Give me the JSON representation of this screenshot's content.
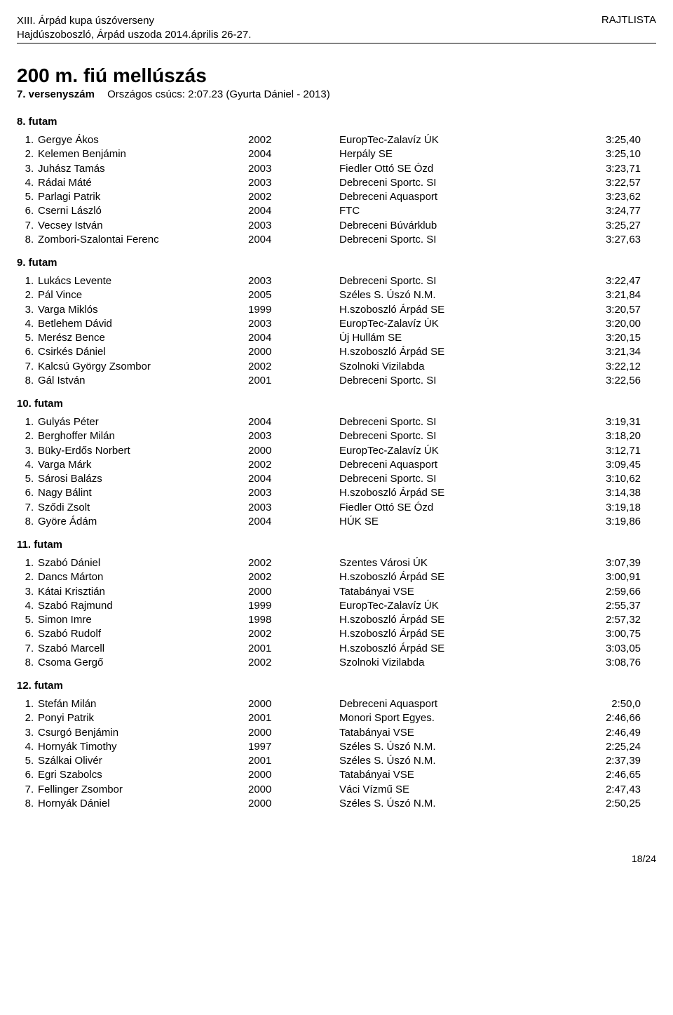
{
  "header": {
    "line1": "XIII. Árpád kupa úszóverseny",
    "line2": "Hajdúszoboszló, Árpád uszoda 2014.április 26-27.",
    "right": "RAJTLISTA"
  },
  "title": "200 m. fiú mellúszás",
  "event_num": "7. versenyszám",
  "record": "Országos csúcs:  2:07.23 (Gyurta Dániel - 2013)",
  "heats": [
    {
      "label": "8. futam",
      "rows": [
        {
          "n": "1",
          "name": "Gergye Ákos",
          "year": "2002",
          "club": "EuropTec-Zalavíz ÚK",
          "time": "3:25,40"
        },
        {
          "n": "2",
          "name": "Kelemen Benjámin",
          "year": "2004",
          "club": "Herpály SE",
          "time": "3:25,10"
        },
        {
          "n": "3",
          "name": "Juhász Tamás",
          "year": "2003",
          "club": "Fiedler Ottó SE Ózd",
          "time": "3:23,71"
        },
        {
          "n": "4",
          "name": "Rádai Máté",
          "year": "2003",
          "club": "Debreceni Sportc. SI",
          "time": "3:22,57"
        },
        {
          "n": "5",
          "name": "Parlagi Patrik",
          "year": "2002",
          "club": "Debreceni Aquasport",
          "time": "3:23,62"
        },
        {
          "n": "6",
          "name": "Cserni László",
          "year": "2004",
          "club": "FTC",
          "time": "3:24,77"
        },
        {
          "n": "7",
          "name": "Vecsey István",
          "year": "2003",
          "club": "Debreceni Búvárklub",
          "time": "3:25,27"
        },
        {
          "n": "8",
          "name": "Zombori-Szalontai Ferenc",
          "year": "2004",
          "club": "Debreceni Sportc. SI",
          "time": "3:27,63"
        }
      ]
    },
    {
      "label": "9. futam",
      "rows": [
        {
          "n": "1",
          "name": "Lukács Levente",
          "year": "2003",
          "club": "Debreceni Sportc. SI",
          "time": "3:22,47"
        },
        {
          "n": "2",
          "name": "Pál Vince",
          "year": "2005",
          "club": "Széles S. Úszó N.M.",
          "time": "3:21,84"
        },
        {
          "n": "3",
          "name": "Varga Miklós",
          "year": "1999",
          "club": "H.szoboszló Árpád SE",
          "time": "3:20,57"
        },
        {
          "n": "4",
          "name": "Betlehem Dávid",
          "year": "2003",
          "club": "EuropTec-Zalavíz ÚK",
          "time": "3:20,00"
        },
        {
          "n": "5",
          "name": "Merész Bence",
          "year": "2004",
          "club": "Új Hullám SE",
          "time": "3:20,15"
        },
        {
          "n": "6",
          "name": "Csirkés Dániel",
          "year": "2000",
          "club": "H.szoboszló Árpád SE",
          "time": "3:21,34"
        },
        {
          "n": "7",
          "name": "Kalcsú György Zsombor",
          "year": "2002",
          "club": "Szolnoki Vizilabda",
          "time": "3:22,12"
        },
        {
          "n": "8",
          "name": "Gál István",
          "year": "2001",
          "club": "Debreceni Sportc. SI",
          "time": "3:22,56"
        }
      ]
    },
    {
      "label": "10. futam",
      "rows": [
        {
          "n": "1",
          "name": "Gulyás Péter",
          "year": "2004",
          "club": "Debreceni Sportc. SI",
          "time": "3:19,31"
        },
        {
          "n": "2",
          "name": "Berghoffer Milán",
          "year": "2003",
          "club": "Debreceni Sportc. SI",
          "time": "3:18,20"
        },
        {
          "n": "3",
          "name": "Büky-Erdős Norbert",
          "year": "2000",
          "club": "EuropTec-Zalavíz ÚK",
          "time": "3:12,71"
        },
        {
          "n": "4",
          "name": "Varga Márk",
          "year": "2002",
          "club": "Debreceni Aquasport",
          "time": "3:09,45"
        },
        {
          "n": "5",
          "name": "Sárosi Balázs",
          "year": "2004",
          "club": "Debreceni Sportc. SI",
          "time": "3:10,62"
        },
        {
          "n": "6",
          "name": "Nagy Bálint",
          "year": "2003",
          "club": "H.szoboszló Árpád SE",
          "time": "3:14,38"
        },
        {
          "n": "7",
          "name": "Sződi Zsolt",
          "year": "2003",
          "club": "Fiedler Ottó SE Ózd",
          "time": "3:19,18"
        },
        {
          "n": "8",
          "name": "Györe Ádám",
          "year": "2004",
          "club": "HÚK SE",
          "time": "3:19,86"
        }
      ]
    },
    {
      "label": "11. futam",
      "rows": [
        {
          "n": "1",
          "name": "Szabó Dániel",
          "year": "2002",
          "club": "Szentes Városi ÚK",
          "time": "3:07,39"
        },
        {
          "n": "2",
          "name": "Dancs Márton",
          "year": "2002",
          "club": "H.szoboszló Árpád SE",
          "time": "3:00,91"
        },
        {
          "n": "3",
          "name": "Kátai Krisztián",
          "year": "2000",
          "club": "Tatabányai VSE",
          "time": "2:59,66"
        },
        {
          "n": "4",
          "name": "Szabó Rajmund",
          "year": "1999",
          "club": "EuropTec-Zalavíz ÚK",
          "time": "2:55,37"
        },
        {
          "n": "5",
          "name": "Simon Imre",
          "year": "1998",
          "club": "H.szoboszló Árpád SE",
          "time": "2:57,32"
        },
        {
          "n": "6",
          "name": "Szabó Rudolf",
          "year": "2002",
          "club": "H.szoboszló Árpád SE",
          "time": "3:00,75"
        },
        {
          "n": "7",
          "name": "Szabó Marcell",
          "year": "2001",
          "club": "H.szoboszló Árpád SE",
          "time": "3:03,05"
        },
        {
          "n": "8",
          "name": "Csoma Gergő",
          "year": "2002",
          "club": "Szolnoki Vizilabda",
          "time": "3:08,76"
        }
      ]
    },
    {
      "label": "12. futam",
      "rows": [
        {
          "n": "1",
          "name": "Stefán Milán",
          "year": "2000",
          "club": "Debreceni Aquasport",
          "time": "2:50,0"
        },
        {
          "n": "2",
          "name": "Ponyi Patrik",
          "year": "2001",
          "club": "Monori Sport Egyes.",
          "time": "2:46,66"
        },
        {
          "n": "3",
          "name": "Csurgó Benjámin",
          "year": "2000",
          "club": "Tatabányai VSE",
          "time": "2:46,49"
        },
        {
          "n": "4",
          "name": "Hornyák Timothy",
          "year": "1997",
          "club": "Széles S. Úszó N.M.",
          "time": "2:25,24"
        },
        {
          "n": "5",
          "name": "Szálkai Olivér",
          "year": "2001",
          "club": "Széles S. Úszó N.M.",
          "time": "2:37,39"
        },
        {
          "n": "6",
          "name": "Egri Szabolcs",
          "year": "2000",
          "club": "Tatabányai VSE",
          "time": "2:46,65"
        },
        {
          "n": "7",
          "name": "Fellinger Zsombor",
          "year": "2000",
          "club": "Váci Vízmű SE",
          "time": "2:47,43"
        },
        {
          "n": "8",
          "name": "Hornyák Dániel",
          "year": "2000",
          "club": "Széles S. Úszó N.M.",
          "time": "2:50,25"
        }
      ]
    }
  ],
  "page": "18/24"
}
